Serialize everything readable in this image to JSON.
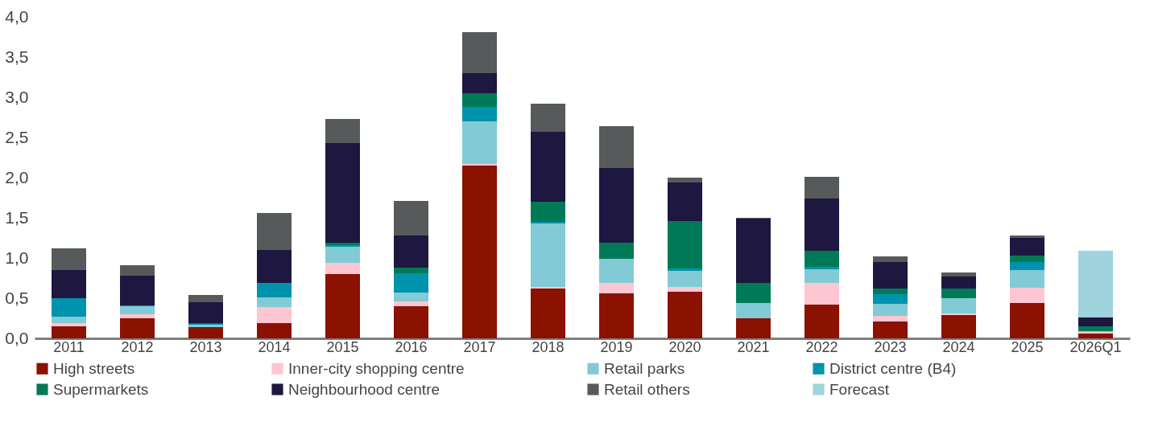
{
  "chart_data": {
    "type": "bar",
    "stacked": true,
    "categories": [
      "2011",
      "2012",
      "2013",
      "2014",
      "2015",
      "2016",
      "2017",
      "2018",
      "2019",
      "2020",
      "2021",
      "2022",
      "2023",
      "2024",
      "2025",
      "2026Q1"
    ],
    "series": [
      {
        "name": "High streets",
        "color": "#8b1100",
        "values": [
          0.15,
          0.25,
          0.14,
          0.19,
          0.8,
          0.4,
          2.15,
          0.62,
          0.56,
          0.58,
          0.25,
          0.42,
          0.21,
          0.29,
          0.44,
          0.06
        ]
      },
      {
        "name": "Inner-city shopping centre",
        "color": "#fec6d1",
        "values": [
          0.04,
          0.05,
          0,
          0.2,
          0.14,
          0.06,
          0.02,
          0.02,
          0.13,
          0.06,
          0,
          0.27,
          0.07,
          0.02,
          0.19,
          0.02
        ]
      },
      {
        "name": "Retail parks",
        "color": "#82cad6",
        "values": [
          0.08,
          0.1,
          0.03,
          0.12,
          0.2,
          0.11,
          0.53,
          0.79,
          0.3,
          0.2,
          0.19,
          0.17,
          0.15,
          0.19,
          0.22,
          0.01
        ]
      },
      {
        "name": "District centre (B4)",
        "color": "#0093ad",
        "values": [
          0.23,
          0.01,
          0.01,
          0.18,
          0.02,
          0.24,
          0.18,
          0.02,
          0,
          0.03,
          0,
          0.03,
          0.12,
          0,
          0.1,
          0
        ]
      },
      {
        "name": "Supermarkets",
        "color": "#007a56",
        "values": [
          0,
          0,
          0.01,
          0,
          0.03,
          0.07,
          0.17,
          0.25,
          0.2,
          0.59,
          0.25,
          0.2,
          0.07,
          0.12,
          0.08,
          0.06
        ]
      },
      {
        "name": "Neighbourhood centre",
        "color": "#1e1740",
        "values": [
          0.35,
          0.37,
          0.26,
          0.41,
          1.24,
          0.4,
          0.25,
          0.87,
          0.93,
          0.48,
          0.8,
          0.65,
          0.33,
          0.15,
          0.22,
          0.11
        ]
      },
      {
        "name": "Retail others",
        "color": "#575a5a",
        "values": [
          0.27,
          0.13,
          0.09,
          0.46,
          0.3,
          0.43,
          0.51,
          0.35,
          0.52,
          0.06,
          0.01,
          0.27,
          0.07,
          0.05,
          0.03,
          0
        ]
      },
      {
        "name": "Forecast",
        "color": "#9fd4df",
        "values": [
          null,
          null,
          null,
          null,
          null,
          null,
          null,
          null,
          null,
          null,
          null,
          null,
          null,
          null,
          null,
          0.83
        ]
      }
    ],
    "ylim": [
      0,
      4
    ],
    "yticks": [
      {
        "value": 0,
        "label": "0,0"
      },
      {
        "value": 0.5,
        "label": "0,5"
      },
      {
        "value": 1,
        "label": "1,0"
      },
      {
        "value": 1.5,
        "label": "1,5"
      },
      {
        "value": 2,
        "label": "2,0"
      },
      {
        "value": 2.5,
        "label": "2,5"
      },
      {
        "value": 3,
        "label": "3,0"
      },
      {
        "value": 3.5,
        "label": "3,5"
      },
      {
        "value": 4,
        "label": "4,0"
      }
    ],
    "grid": false,
    "legend": "bottom"
  }
}
